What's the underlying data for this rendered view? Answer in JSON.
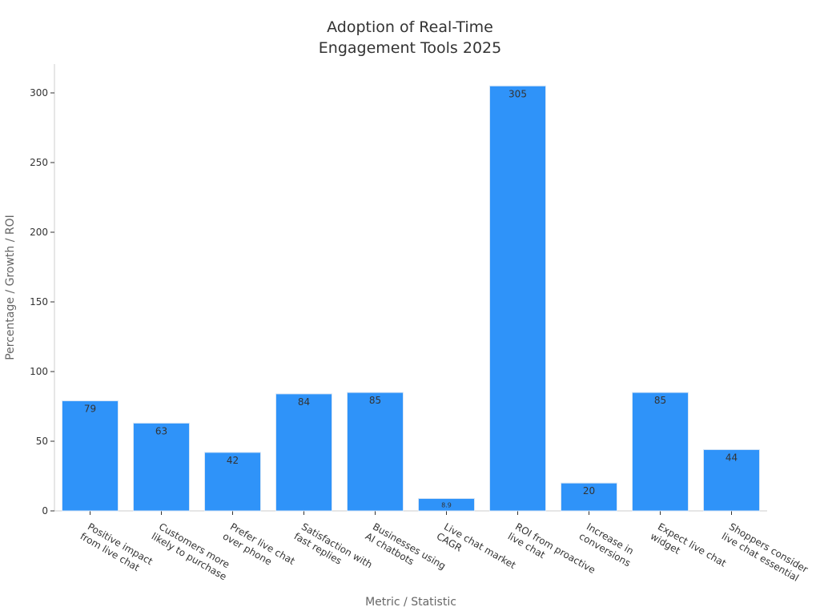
{
  "chart_data": {
    "type": "bar",
    "title": [
      "Adoption of Real-Time",
      "Engagement Tools 2025"
    ],
    "x_label": "Metric / Statistic",
    "y_label": "Percentage / Growth / ROI",
    "categories": [
      [
        "Positive impact",
        "from live chat"
      ],
      [
        "Customers more",
        "likely to purchase"
      ],
      [
        "Prefer live chat",
        "over phone"
      ],
      [
        "Satisfaction with",
        "fast replies"
      ],
      [
        "Businesses using",
        "AI chatbots"
      ],
      [
        "Live chat market",
        "CAGR"
      ],
      [
        "ROI from proactive",
        "live chat"
      ],
      [
        "Increase in",
        "conversions"
      ],
      [
        "Expect live chat",
        "widget"
      ],
      [
        "Shoppers consider",
        "live chat essential"
      ]
    ],
    "values": [
      79,
      63,
      42,
      84,
      85,
      8.9,
      305,
      20,
      85,
      44
    ],
    "color": "#2f93f9",
    "ylim": [
      0,
      320
    ],
    "yticks": [
      0,
      50,
      100,
      150,
      200,
      250,
      300
    ]
  }
}
